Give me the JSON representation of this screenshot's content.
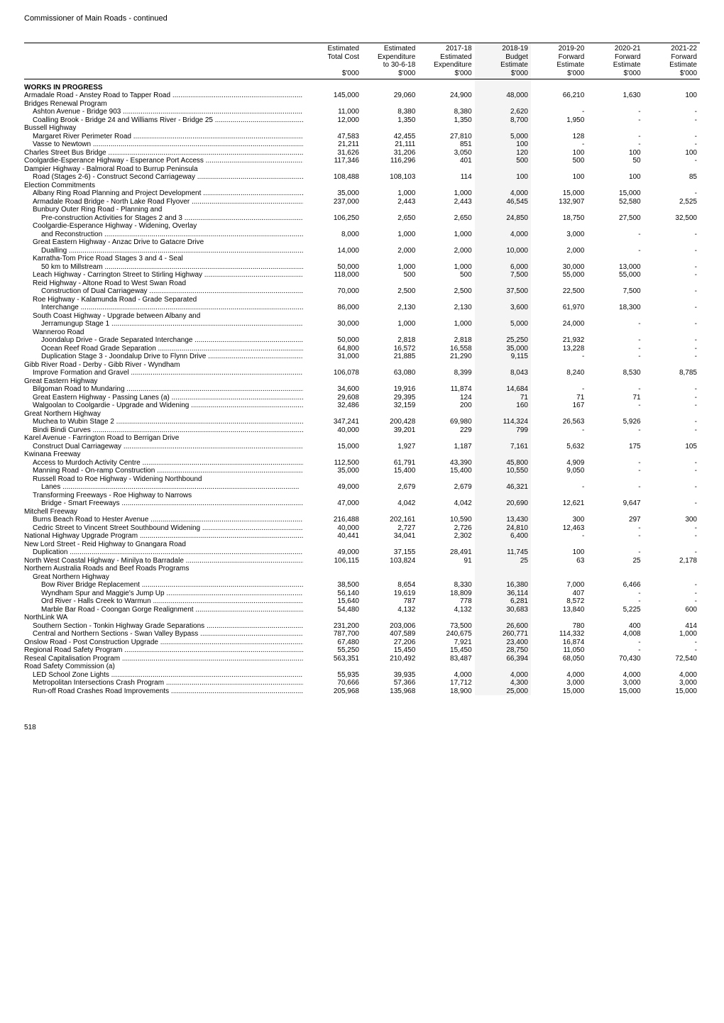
{
  "title": "Commissioner of Main Roads - continued",
  "page_number": "518",
  "columns": [
    "",
    "Estimated Total Cost",
    "Estimated Expenditure to 30-6-18",
    "2017-18 Expenditure",
    "2018-19 Budget Estimate",
    "2019-20 Forward Estimate",
    "2020-21 Forward Estimate",
    "2021-22 Forward Estimate"
  ],
  "unit_row": [
    "$'000",
    "$'000",
    "$'000",
    "$'000",
    "$'000",
    "$'000",
    "$'000"
  ],
  "sections": [
    {
      "heading": "WORKS IN PROGRESS",
      "rows": [
        {
          "indent": 0,
          "desc": "Armadale Road - Anstey Road to Tapper Road",
          "v": [
            "145,000",
            "29,060",
            "24,900",
            "48,000",
            "66,210",
            "1,630",
            "100"
          ]
        },
        {
          "indent": 0,
          "desc": "Bridges Renewal Program",
          "v": [
            "",
            "",
            "",
            "",
            "",
            "",
            ""
          ]
        },
        {
          "indent": 1,
          "desc": "Ashton Avenue - Bridge 903",
          "v": [
            "11,000",
            "8,380",
            "8,380",
            "2,620",
            "-",
            "-",
            "-"
          ]
        },
        {
          "indent": 1,
          "desc": "Coalling Brook - Bridge 24 and Williams River - Bridge 25",
          "v": [
            "12,000",
            "1,350",
            "1,350",
            "8,700",
            "1,950",
            "-",
            "-"
          ]
        },
        {
          "indent": 0,
          "desc": "Bussell Highway",
          "v": [
            "",
            "",
            "",
            "",
            "",
            "",
            ""
          ]
        },
        {
          "indent": 1,
          "desc": "Margaret River Perimeter Road",
          "v": [
            "47,583",
            "42,455",
            "27,810",
            "5,000",
            "128",
            "-",
            "-"
          ]
        },
        {
          "indent": 1,
          "desc": "Vasse to Newtown",
          "v": [
            "21,211",
            "21,111",
            "851",
            "100",
            "-",
            "-",
            "-"
          ]
        },
        {
          "indent": 0,
          "desc": "Charles Street Bus Bridge",
          "v": [
            "31,626",
            "31,206",
            "3,050",
            "120",
            "100",
            "100",
            "100"
          ]
        },
        {
          "indent": 0,
          "desc": "Coolgardie-Esperance Highway - Esperance Port Access",
          "v": [
            "117,346",
            "116,296",
            "401",
            "500",
            "500",
            "50",
            "-"
          ]
        },
        {
          "indent": 0,
          "desc": "Dampier Highway - Balmoral Road to Burrup Peninsula",
          "v": [
            "",
            "",
            "",
            "",
            "",
            "",
            ""
          ]
        },
        {
          "indent": 1,
          "desc": "Road (Stages 2-6) - Construct Second Carriageway",
          "v": [
            "108,488",
            "108,103",
            "114",
            "100",
            "100",
            "100",
            "85"
          ]
        },
        {
          "indent": 0,
          "desc": "Election Commitments",
          "v": [
            "",
            "",
            "",
            "",
            "",
            "",
            ""
          ]
        },
        {
          "indent": 1,
          "desc": "Albany Ring Road Planning and Project Development",
          "v": [
            "35,000",
            "1,000",
            "1,000",
            "4,000",
            "15,000",
            "15,000",
            "-"
          ]
        },
        {
          "indent": 1,
          "desc": "Armadale Road Bridge - North Lake Road Flyover",
          "v": [
            "237,000",
            "2,443",
            "2,443",
            "46,545",
            "132,907",
            "52,580",
            "2,525"
          ]
        },
        {
          "indent": 1,
          "desc": "Bunbury Outer Ring Road - Planning and",
          "v": [
            "",
            "",
            "",
            "",
            "",
            "",
            ""
          ]
        },
        {
          "indent": 2,
          "desc": "Pre-construction Activities for Stages 2 and 3",
          "v": [
            "106,250",
            "2,650",
            "2,650",
            "24,850",
            "18,750",
            "27,500",
            "32,500"
          ]
        },
        {
          "indent": 1,
          "desc": "Coolgardie-Esperance Highway - Widening, Overlay",
          "v": [
            "",
            "",
            "",
            "",
            "",
            "",
            ""
          ]
        },
        {
          "indent": 2,
          "desc": "and Reconstruction",
          "v": [
            "8,000",
            "1,000",
            "1,000",
            "4,000",
            "3,000",
            "-",
            "-"
          ]
        },
        {
          "indent": 1,
          "desc": "Great Eastern Highway - Anzac Drive to Gatacre Drive",
          "v": [
            "",
            "",
            "",
            "",
            "",
            "",
            ""
          ]
        },
        {
          "indent": 2,
          "desc": "Dualling",
          "v": [
            "14,000",
            "2,000",
            "2,000",
            "10,000",
            "2,000",
            "-",
            "-"
          ]
        },
        {
          "indent": 1,
          "desc": "Karratha-Tom Price Road Stages 3 and 4 - Seal",
          "v": [
            "",
            "",
            "",
            "",
            "",
            "",
            ""
          ]
        },
        {
          "indent": 2,
          "desc": "50 km to Millstream",
          "v": [
            "50,000",
            "1,000",
            "1,000",
            "6,000",
            "30,000",
            "13,000",
            "-"
          ]
        },
        {
          "indent": 1,
          "desc": "Leach Highway - Carrington Street to Stirling Highway",
          "v": [
            "118,000",
            "500",
            "500",
            "7,500",
            "55,000",
            "55,000",
            "-"
          ]
        },
        {
          "indent": 1,
          "desc": "Reid Highway - Altone Road to West Swan Road",
          "v": [
            "",
            "",
            "",
            "",
            "",
            "",
            ""
          ]
        },
        {
          "indent": 2,
          "desc": "Construction of Dual Carriageway",
          "v": [
            "70,000",
            "2,500",
            "2,500",
            "37,500",
            "22,500",
            "7,500",
            "-"
          ]
        },
        {
          "indent": 1,
          "desc": "Roe Highway - Kalamunda Road - Grade Separated",
          "v": [
            "",
            "",
            "",
            "",
            "",
            "",
            ""
          ]
        },
        {
          "indent": 2,
          "desc": "Interchange",
          "v": [
            "86,000",
            "2,130",
            "2,130",
            "3,600",
            "61,970",
            "18,300",
            "-"
          ]
        },
        {
          "indent": 1,
          "desc": "South Coast Highway - Upgrade between Albany and",
          "v": [
            "",
            "",
            "",
            "",
            "",
            "",
            ""
          ]
        },
        {
          "indent": 2,
          "desc": "Jerramungup Stage 1",
          "v": [
            "30,000",
            "1,000",
            "1,000",
            "5,000",
            "24,000",
            "-",
            "-"
          ]
        },
        {
          "indent": 1,
          "desc": "Wanneroo Road",
          "v": [
            "",
            "",
            "",
            "",
            "",
            "",
            ""
          ]
        },
        {
          "indent": 2,
          "desc": "Joondalup Drive - Grade Separated Interchange",
          "v": [
            "50,000",
            "2,818",
            "2,818",
            "25,250",
            "21,932",
            "-",
            "-"
          ]
        },
        {
          "indent": 2,
          "desc": "Ocean Reef Road Grade Separation",
          "v": [
            "64,800",
            "16,572",
            "16,558",
            "35,000",
            "13,228",
            "-",
            "-"
          ]
        },
        {
          "indent": 2,
          "desc": "Duplication Stage 3 - Joondalup Drive to Flynn Drive",
          "v": [
            "31,000",
            "21,885",
            "21,290",
            "9,115",
            "-",
            "-",
            "-"
          ]
        },
        {
          "indent": 0,
          "desc": "Gibb River Road - Derby - Gibb River - Wyndham",
          "v": [
            "",
            "",
            "",
            "",
            "",
            "",
            ""
          ]
        },
        {
          "indent": 1,
          "desc": "Improve Formation and Gravel",
          "v": [
            "106,078",
            "63,080",
            "8,399",
            "8,043",
            "8,240",
            "8,530",
            "8,785"
          ]
        },
        {
          "indent": 0,
          "desc": "Great Eastern Highway",
          "v": [
            "",
            "",
            "",
            "",
            "",
            "",
            ""
          ]
        },
        {
          "indent": 1,
          "desc": "Bilgoman Road to Mundaring",
          "v": [
            "34,600",
            "19,916",
            "11,874",
            "14,684",
            "-",
            "-",
            "-"
          ]
        },
        {
          "indent": 1,
          "desc": "Great Eastern Highway - Passing Lanes (a)",
          "v": [
            "29,608",
            "29,395",
            "124",
            "71",
            "71",
            "71",
            "-"
          ]
        },
        {
          "indent": 1,
          "desc": "Walgoolan to Coolgardie - Upgrade and Widening",
          "v": [
            "32,486",
            "32,159",
            "200",
            "160",
            "167",
            "-",
            "-"
          ]
        },
        {
          "indent": 0,
          "desc": "Great Northern Highway",
          "v": [
            "",
            "",
            "",
            "",
            "",
            "",
            ""
          ]
        },
        {
          "indent": 1,
          "desc": "Muchea to Wubin Stage 2",
          "v": [
            "347,241",
            "200,428",
            "69,980",
            "114,324",
            "26,563",
            "5,926",
            "-"
          ]
        },
        {
          "indent": 1,
          "desc": "Bindi Bindi Curves",
          "v": [
            "40,000",
            "39,201",
            "229",
            "799",
            "-",
            "-",
            "-"
          ]
        },
        {
          "indent": 0,
          "desc": "Karel Avenue - Farrington Road to Berrigan Drive",
          "v": [
            "",
            "",
            "",
            "",
            "",
            "",
            ""
          ]
        },
        {
          "indent": 1,
          "desc": "Construct Dual Carriageway",
          "v": [
            "15,000",
            "1,927",
            "1,187",
            "7,161",
            "5,632",
            "175",
            "105"
          ]
        },
        {
          "indent": 0,
          "desc": "Kwinana Freeway",
          "v": [
            "",
            "",
            "",
            "",
            "",
            "",
            ""
          ]
        },
        {
          "indent": 1,
          "desc": "Access to Murdoch Activity Centre",
          "v": [
            "112,500",
            "61,791",
            "43,390",
            "45,800",
            "4,909",
            "-",
            "-"
          ]
        },
        {
          "indent": 1,
          "desc": "Manning Road - On-ramp Construction",
          "v": [
            "35,000",
            "15,400",
            "15,400",
            "10,550",
            "9,050",
            "-",
            "-"
          ]
        },
        {
          "indent": 1,
          "desc": "Russell Road to Roe Highway - Widening Northbound",
          "v": [
            "",
            "",
            "",
            "",
            "",
            "",
            ""
          ]
        },
        {
          "indent": 2,
          "desc": "Lanes",
          "v": [
            "49,000",
            "2,679",
            "2,679",
            "46,321",
            "-",
            "-",
            "-"
          ]
        },
        {
          "indent": 1,
          "desc": "Transforming Freeways - Roe Highway to Narrows",
          "v": [
            "",
            "",
            "",
            "",
            "",
            "",
            ""
          ]
        },
        {
          "indent": 2,
          "desc": "Bridge - Smart Freeways",
          "v": [
            "47,000",
            "4,042",
            "4,042",
            "20,690",
            "12,621",
            "9,647",
            "-"
          ]
        },
        {
          "indent": 0,
          "desc": "Mitchell Freeway",
          "v": [
            "",
            "",
            "",
            "",
            "",
            "",
            ""
          ]
        },
        {
          "indent": 1,
          "desc": "Burns Beach Road to Hester Avenue",
          "v": [
            "216,488",
            "202,161",
            "10,590",
            "13,430",
            "300",
            "297",
            "300"
          ]
        },
        {
          "indent": 1,
          "desc": "Cedric Street to Vincent Street Southbound Widening",
          "v": [
            "40,000",
            "2,727",
            "2,726",
            "24,810",
            "12,463",
            "-",
            "-"
          ]
        },
        {
          "indent": 0,
          "desc": "National Highway Upgrade Program",
          "v": [
            "40,441",
            "34,041",
            "2,302",
            "6,400",
            "-",
            "-",
            "-"
          ]
        },
        {
          "indent": 0,
          "desc": "New Lord Street - Reid Highway to Gnangara Road",
          "v": [
            "",
            "",
            "",
            "",
            "",
            "",
            ""
          ]
        },
        {
          "indent": 1,
          "desc": "Duplication",
          "v": [
            "49,000",
            "37,155",
            "28,491",
            "11,745",
            "100",
            "-",
            "-"
          ]
        },
        {
          "indent": 0,
          "desc": "North West Coastal Highway - Minilya to Barradale",
          "v": [
            "106,115",
            "103,824",
            "91",
            "25",
            "63",
            "25",
            "2,178"
          ]
        },
        {
          "indent": 0,
          "desc": "Northern Australia Roads and Beef Roads Programs",
          "v": [
            "",
            "",
            "",
            "",
            "",
            "",
            ""
          ]
        },
        {
          "indent": 1,
          "desc": "Great Northern Highway",
          "v": [
            "",
            "",
            "",
            "",
            "",
            "",
            ""
          ]
        },
        {
          "indent": 2,
          "desc": "Bow River Bridge Replacement",
          "v": [
            "38,500",
            "8,654",
            "8,330",
            "16,380",
            "7,000",
            "6,466",
            "-"
          ]
        },
        {
          "indent": 2,
          "desc": "Wyndham Spur and Maggie's Jump Up",
          "v": [
            "56,140",
            "19,619",
            "18,809",
            "36,114",
            "407",
            "-",
            "-"
          ]
        },
        {
          "indent": 2,
          "desc": "Ord River - Halls Creek to Warmun",
          "v": [
            "15,640",
            "787",
            "778",
            "6,281",
            "8,572",
            "-",
            "-"
          ]
        },
        {
          "indent": 2,
          "desc": "Marble Bar Road - Coongan Gorge Realignment",
          "v": [
            "54,480",
            "4,132",
            "4,132",
            "30,683",
            "13,840",
            "5,225",
            "600"
          ]
        },
        {
          "indent": 0,
          "desc": "NorthLink WA",
          "v": [
            "",
            "",
            "",
            "",
            "",
            "",
            ""
          ]
        },
        {
          "indent": 1,
          "desc": "Southern Section - Tonkin Highway Grade Separations",
          "v": [
            "231,200",
            "203,006",
            "73,500",
            "26,600",
            "780",
            "400",
            "414"
          ]
        },
        {
          "indent": 1,
          "desc": "Central and Northern Sections - Swan Valley Bypass",
          "v": [
            "787,700",
            "407,589",
            "240,675",
            "260,771",
            "114,332",
            "4,008",
            "1,000"
          ]
        },
        {
          "indent": 0,
          "desc": "Onslow Road - Post Construction Upgrade",
          "v": [
            "67,480",
            "27,206",
            "7,921",
            "23,400",
            "16,874",
            "-",
            "-"
          ]
        },
        {
          "indent": 0,
          "desc": "Regional Road Safety Program",
          "v": [
            "55,250",
            "15,450",
            "15,450",
            "28,750",
            "11,050",
            "-",
            "-"
          ]
        },
        {
          "indent": 0,
          "desc": "Reseal Capitalisation Program",
          "v": [
            "563,351",
            "210,492",
            "83,487",
            "66,394",
            "68,050",
            "70,430",
            "72,540"
          ]
        },
        {
          "indent": 0,
          "desc": "Road Safety Commission (a)",
          "v": [
            "",
            "",
            "",
            "",
            "",
            "",
            ""
          ]
        },
        {
          "indent": 1,
          "desc": "LED School Zone Lights",
          "v": [
            "55,935",
            "39,935",
            "4,000",
            "4,000",
            "4,000",
            "4,000",
            "4,000"
          ]
        },
        {
          "indent": 1,
          "desc": "Metropolitan Intersections Crash Program",
          "v": [
            "70,666",
            "57,366",
            "17,712",
            "4,300",
            "3,000",
            "3,000",
            "3,000"
          ]
        },
        {
          "indent": 1,
          "desc": "Run-off Road Crashes Road Improvements",
          "v": [
            "205,968",
            "135,968",
            "18,900",
            "25,000",
            "15,000",
            "15,000",
            "15,000"
          ]
        }
      ]
    }
  ]
}
